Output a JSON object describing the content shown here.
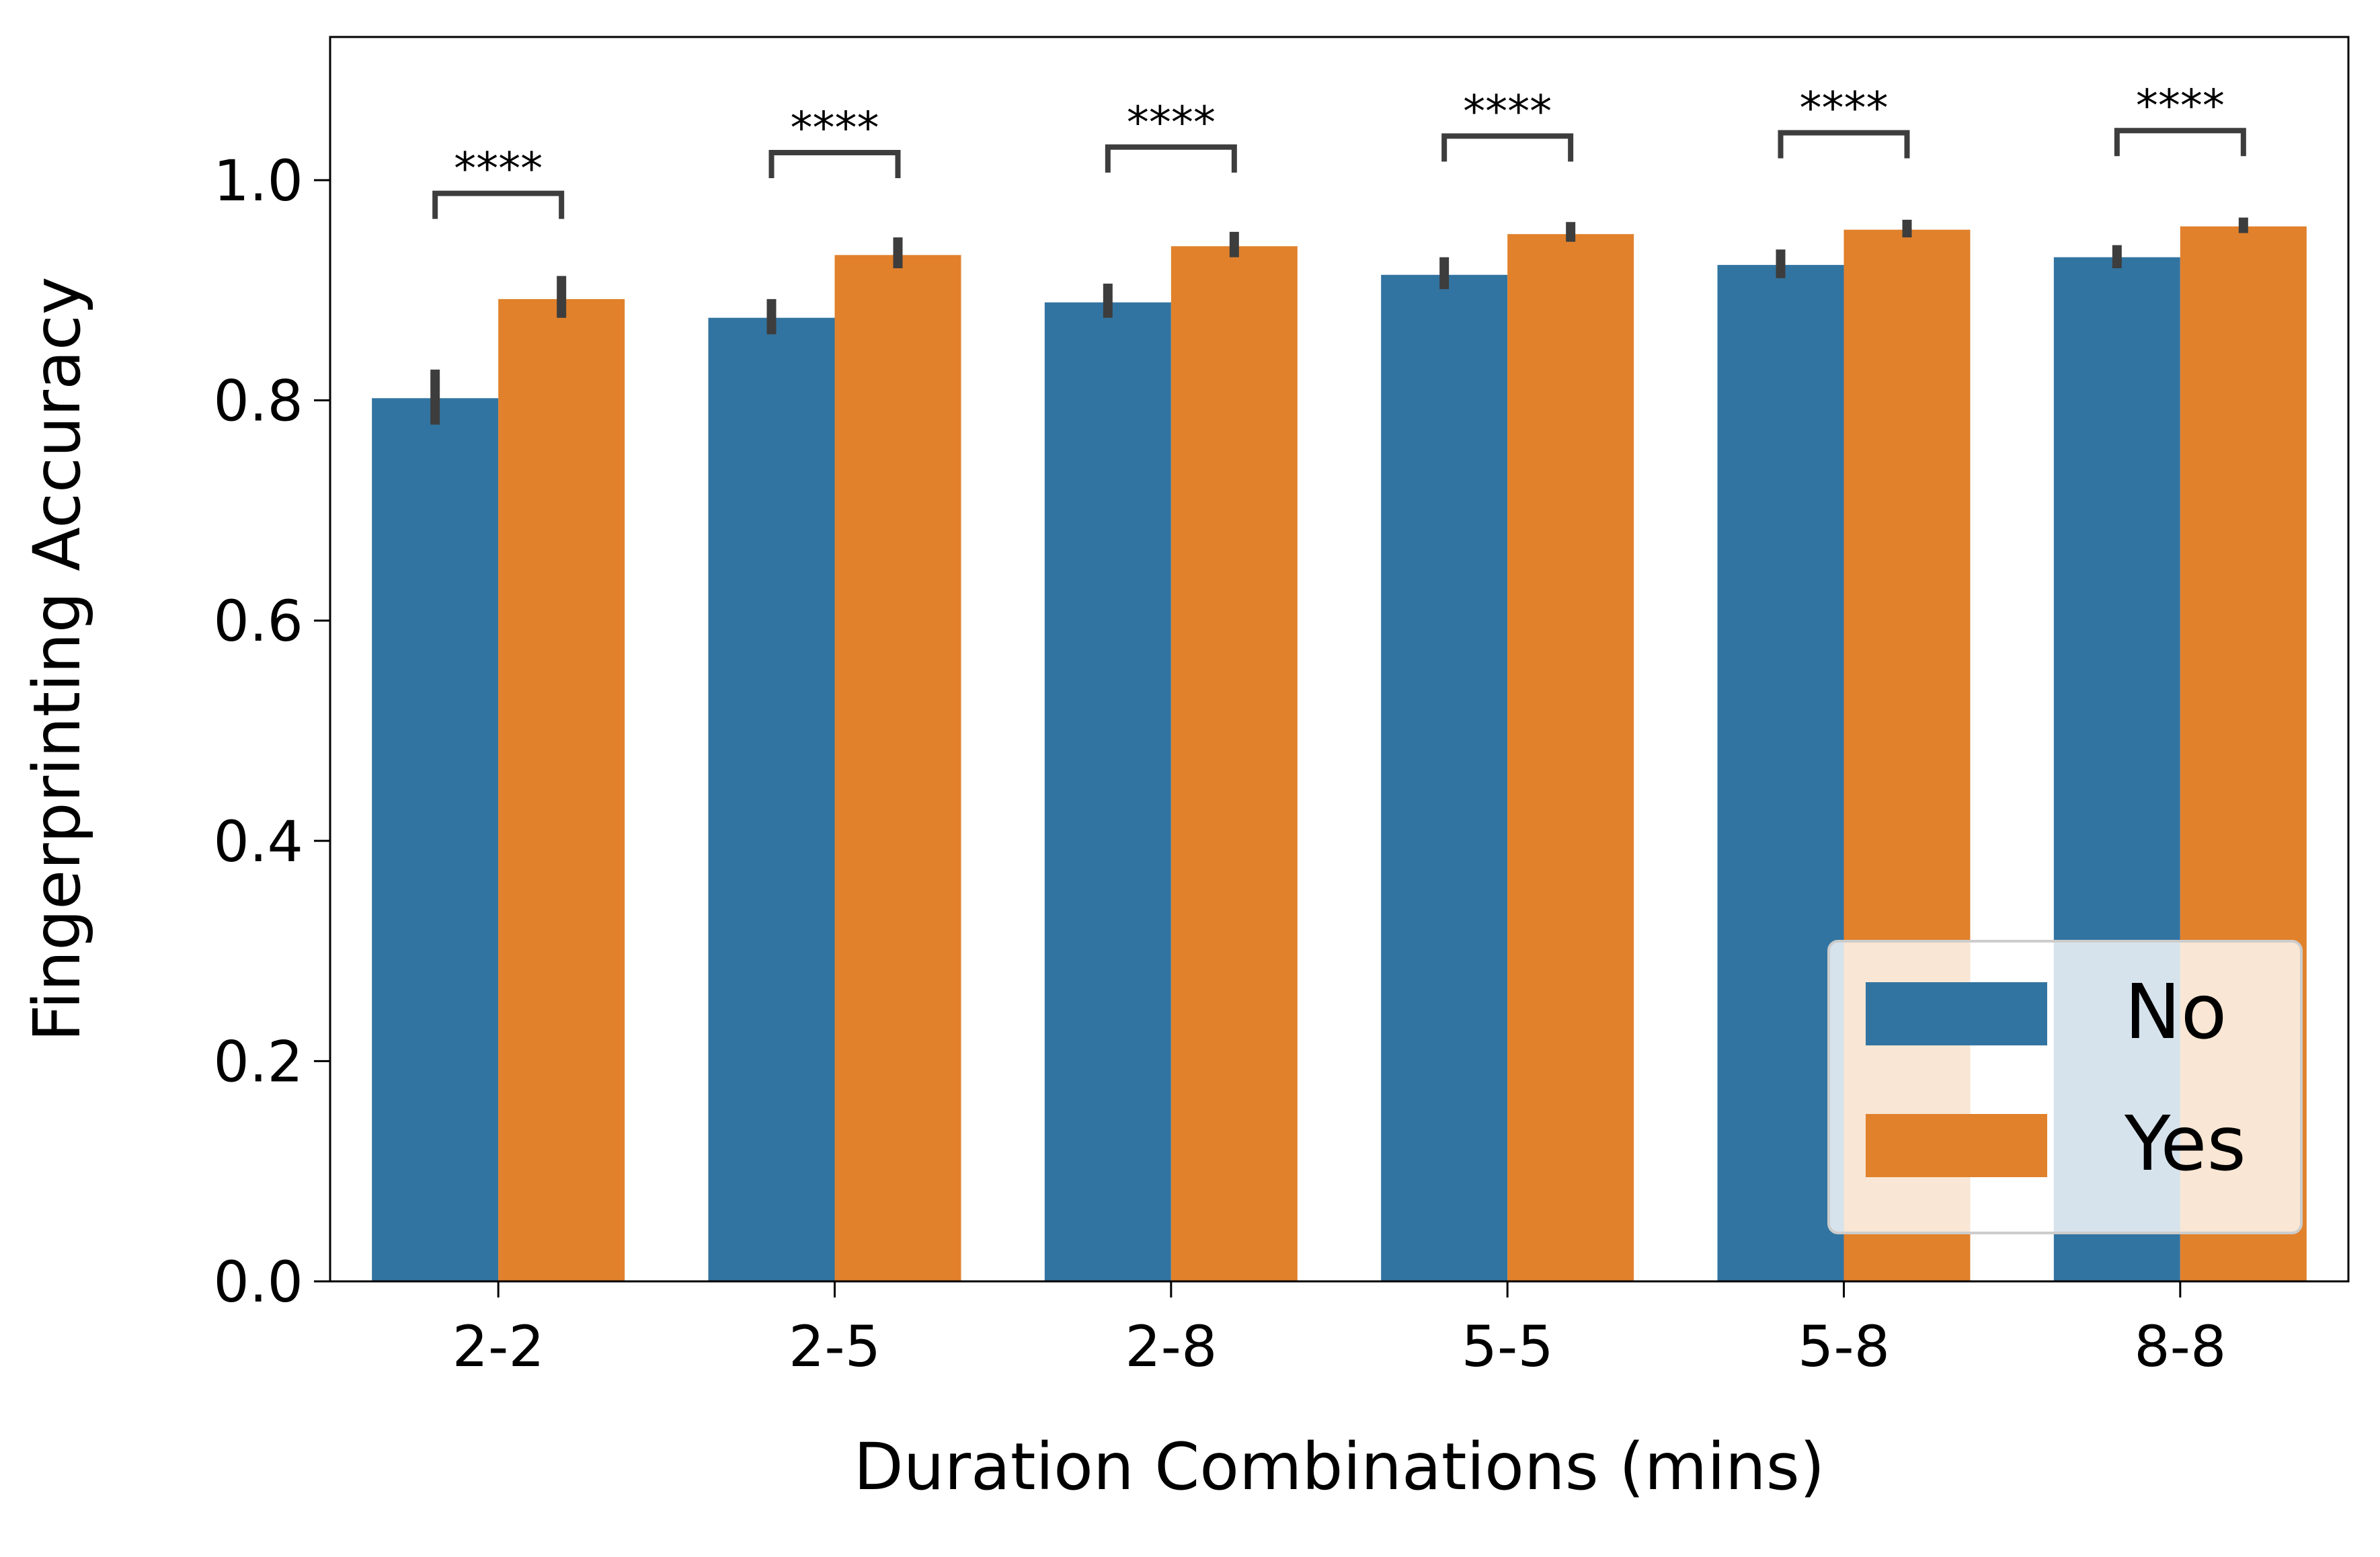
{
  "chart_data": {
    "type": "bar",
    "title": "",
    "xlabel": "Duration Combinations (mins)",
    "ylabel": "Fingerprinting Accuracy",
    "categories": [
      "2-2",
      "2-5",
      "2-8",
      "5-5",
      "5-8",
      "8-8"
    ],
    "ylim": [
      0,
      1.13
    ],
    "yticks": [
      0.0,
      0.2,
      0.4,
      0.6,
      0.8,
      1.0
    ],
    "ytick_labels": [
      "0.0",
      "0.2",
      "0.4",
      "0.6",
      "0.8",
      "1.0"
    ],
    "grid": false,
    "legend_position": "bottom-right",
    "series": [
      {
        "name": "No",
        "color": "#3274a1",
        "values": [
          0.802,
          0.875,
          0.889,
          0.914,
          0.923,
          0.93
        ],
        "error_low": [
          0.778,
          0.86,
          0.875,
          0.901,
          0.911,
          0.92
        ],
        "error_high": [
          0.828,
          0.892,
          0.906,
          0.93,
          0.937,
          0.941
        ]
      },
      {
        "name": "Yes",
        "color": "#e1812c",
        "values": [
          0.892,
          0.932,
          0.94,
          0.951,
          0.955,
          0.958
        ],
        "error_low": [
          0.875,
          0.92,
          0.93,
          0.944,
          0.948,
          0.952
        ],
        "error_high": [
          0.913,
          0.948,
          0.953,
          0.962,
          0.964,
          0.966
        ]
      }
    ],
    "annotations": [
      {
        "category": "2-2",
        "text": "****",
        "bracket_y": 0.988
      },
      {
        "category": "2-5",
        "text": "****",
        "bracket_y": 1.025
      },
      {
        "category": "2-8",
        "text": "****",
        "bracket_y": 1.03
      },
      {
        "category": "5-5",
        "text": "****",
        "bracket_y": 1.04
      },
      {
        "category": "5-8",
        "text": "****",
        "bracket_y": 1.043
      },
      {
        "category": "8-8",
        "text": "****",
        "bracket_y": 1.045
      }
    ]
  }
}
